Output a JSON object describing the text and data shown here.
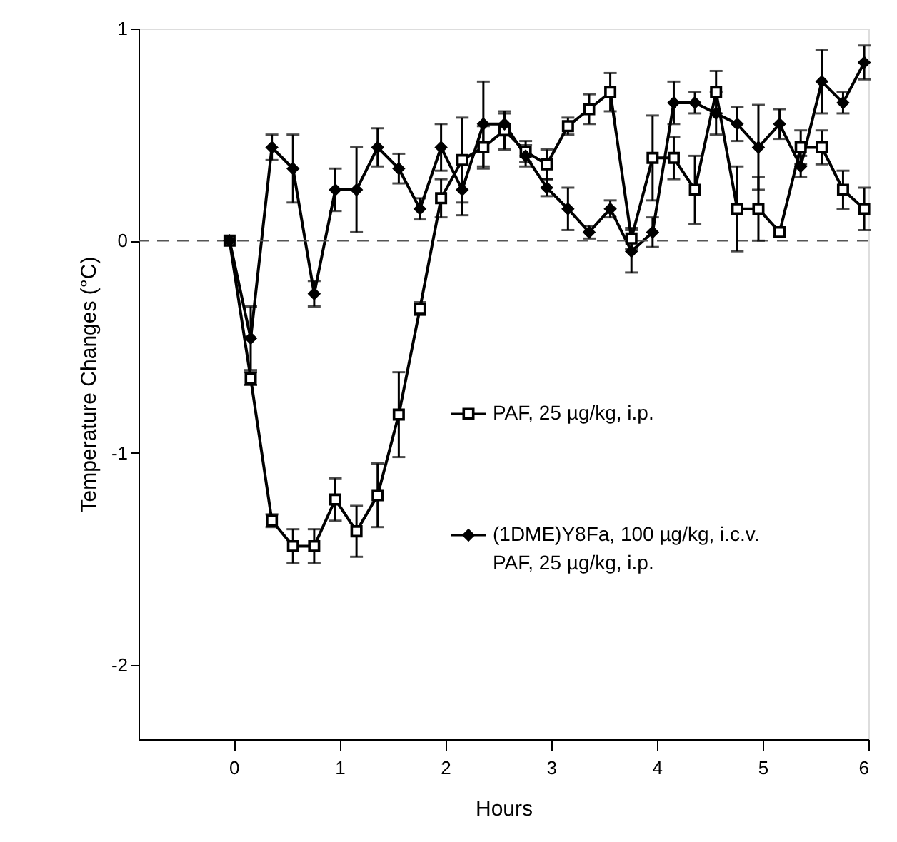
{
  "chart_data": {
    "type": "line",
    "xlabel": "Hours",
    "ylabel": "Temperature  Changes (°C)",
    "x": [
      -0.04,
      0.16,
      0.36,
      0.56,
      0.76,
      0.96,
      1.16,
      1.36,
      1.56,
      1.76,
      1.96,
      2.16,
      2.36,
      2.56,
      2.76,
      2.96,
      3.16,
      3.36,
      3.56,
      3.76,
      3.96,
      4.16,
      4.36,
      4.56,
      4.76,
      4.96,
      5.16,
      5.36,
      5.56,
      5.76,
      5.96
    ],
    "series": [
      {
        "name": "PAF, 25 µg/kg, i.p.",
        "color": "#000000",
        "marker": "square",
        "values": [
          0,
          -0.65,
          -1.32,
          -1.44,
          -1.44,
          -1.22,
          -1.37,
          -1.2,
          -0.82,
          -0.32,
          0.2,
          0.38,
          0.44,
          0.52,
          0.42,
          0.36,
          0.54,
          0.62,
          0.7,
          0.01,
          0.39,
          0.39,
          0.24,
          0.7,
          0.15,
          0.15,
          0.04,
          0.44,
          0.44,
          0.24,
          0.15
        ],
        "errors": [
          null,
          0.03,
          0.03,
          0.08,
          0.08,
          0.1,
          0.12,
          0.15,
          0.2,
          0.03,
          0.09,
          0.2,
          0.1,
          0.09,
          0.05,
          0.07,
          0.04,
          0.07,
          0.09,
          0.05,
          0.2,
          0.1,
          0.16,
          0.1,
          0.2,
          0.15,
          0.02,
          0.08,
          0.08,
          0.09,
          0.1
        ]
      },
      {
        "name": "(1DME)Y8Fa, 100 µg/kg, i.c.v.\nPAF, 25 µg/kg, i.p.",
        "color": "#000000",
        "marker": "diamond",
        "values": [
          0,
          -0.46,
          0.44,
          0.34,
          -0.25,
          0.24,
          0.24,
          0.44,
          0.34,
          0.15,
          0.44,
          0.24,
          0.55,
          0.55,
          0.4,
          0.25,
          0.15,
          0.04,
          0.15,
          -0.05,
          0.04,
          0.65,
          0.65,
          0.6,
          0.55,
          0.44,
          0.55,
          0.35,
          0.75,
          0.65,
          0.84
        ],
        "errors": [
          null,
          0.15,
          0.06,
          0.16,
          0.06,
          0.1,
          0.2,
          0.09,
          0.07,
          0.05,
          0.11,
          0.12,
          0.2,
          0.05,
          0.05,
          0.04,
          0.1,
          0.03,
          0.04,
          0.1,
          0.07,
          0.1,
          0.05,
          0.1,
          0.08,
          0.2,
          0.07,
          0.05,
          0.15,
          0.05,
          0.08
        ]
      }
    ],
    "xlim": [
      -0.9,
      6
    ],
    "xticks": [
      0,
      1,
      2,
      3,
      4,
      5,
      6
    ],
    "ylim": [
      -2.35,
      1
    ],
    "yticks": [
      -2,
      -1,
      0,
      1
    ],
    "ref_lines": [
      {
        "axis": "y",
        "value": 0,
        "line_style": "dashed",
        "color": "#555555"
      }
    ],
    "grid": false,
    "legend": "right"
  }
}
